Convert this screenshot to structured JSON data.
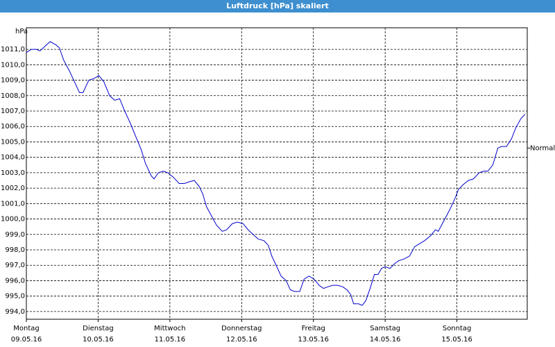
{
  "chart_data": {
    "type": "line",
    "title": "Luftdruck [hPa] skaliert",
    "y_label": "hPa",
    "reference": {
      "label": "Normal",
      "value": 1004.6
    },
    "xlim": [
      0,
      6.98
    ],
    "xticks": [
      {
        "value": 0,
        "label": "Montag",
        "date": "09.05.16"
      },
      {
        "value": 1,
        "label": "Dienstag",
        "date": "10.05.16"
      },
      {
        "value": 2,
        "label": "Mittwoch",
        "date": "11.05.16"
      },
      {
        "value": 3,
        "label": "Donnerstag",
        "date": "12.05.16"
      },
      {
        "value": 4,
        "label": "Freitag",
        "date": "13.05.16"
      },
      {
        "value": 5,
        "label": "Samstag",
        "date": "14.05.16"
      },
      {
        "value": 6,
        "label": "Sonntag",
        "date": "15.05.16"
      }
    ],
    "ylim": [
      993.5,
      1012.4
    ],
    "yticks": [
      {
        "value": 994,
        "label": "994,0"
      },
      {
        "value": 995,
        "label": "995,0"
      },
      {
        "value": 996,
        "label": "996,0"
      },
      {
        "value": 997,
        "label": "997,0"
      },
      {
        "value": 998,
        "label": "998,0"
      },
      {
        "value": 999,
        "label": "999,0"
      },
      {
        "value": 1000,
        "label": "1000,0"
      },
      {
        "value": 1001,
        "label": "1001,0"
      },
      {
        "value": 1002,
        "label": "1002,0"
      },
      {
        "value": 1003,
        "label": "1003,0"
      },
      {
        "value": 1004,
        "label": "1004,0"
      },
      {
        "value": 1005,
        "label": "1005,0"
      },
      {
        "value": 1006,
        "label": "1006,0"
      },
      {
        "value": 1007,
        "label": "1007,0"
      },
      {
        "value": 1008,
        "label": "1008,0"
      },
      {
        "value": 1009,
        "label": "1009,0"
      },
      {
        "value": 1010,
        "label": "1010,0"
      },
      {
        "value": 1011,
        "label": "1011,0"
      }
    ],
    "grid": true,
    "series": [
      {
        "color": "#0000cc",
        "x": [
          0,
          0.07,
          0.14,
          0.19,
          0.26,
          0.33,
          0.41,
          0.46,
          0.52,
          0.6,
          0.68,
          0.74,
          0.79,
          0.87,
          0.94,
          1.01,
          1.08,
          1.16,
          1.23,
          1.3,
          1.37,
          1.45,
          1.52,
          1.6,
          1.66,
          1.74,
          1.78,
          1.84,
          1.91,
          1.97,
          2.05,
          2.13,
          2.2,
          2.26,
          2.34,
          2.41,
          2.46,
          2.51,
          2.58,
          2.65,
          2.73,
          2.79,
          2.87,
          2.94,
          3.02,
          3.09,
          3.16,
          3.23,
          3.31,
          3.37,
          3.42,
          3.48,
          3.55,
          3.62,
          3.68,
          3.74,
          3.81,
          3.87,
          3.94,
          4.01,
          4.08,
          4.14,
          4.2,
          4.27,
          4.34,
          4.41,
          4.47,
          4.52,
          4.56,
          4.63,
          4.68,
          4.73,
          4.79,
          4.85,
          4.9,
          4.95,
          5.0,
          5.07,
          5.13,
          5.19,
          5.26,
          5.34,
          5.41,
          5.48,
          5.55,
          5.63,
          5.7,
          5.74,
          5.82,
          5.9,
          5.97,
          6.02,
          6.08,
          6.16,
          6.23,
          6.31,
          6.37,
          6.43,
          6.5,
          6.57,
          6.62,
          6.69,
          6.76,
          6.82,
          6.89,
          6.95
        ],
        "values": [
          1010.8,
          1011.0,
          1011.0,
          1010.9,
          1011.2,
          1011.5,
          1011.3,
          1011.1,
          1010.3,
          1009.6,
          1008.8,
          1008.2,
          1008.2,
          1009.0,
          1009.1,
          1009.3,
          1008.9,
          1008.0,
          1007.7,
          1007.8,
          1007.0,
          1006.2,
          1005.4,
          1004.5,
          1003.6,
          1002.8,
          1002.6,
          1003.0,
          1003.1,
          1003.0,
          1002.7,
          1002.3,
          1002.3,
          1002.4,
          1002.5,
          1002.1,
          1001.6,
          1000.8,
          1000.2,
          999.6,
          999.2,
          999.3,
          999.7,
          999.8,
          999.7,
          999.3,
          999.0,
          998.7,
          998.6,
          998.3,
          997.6,
          997.0,
          996.3,
          996.0,
          995.4,
          995.3,
          995.3,
          996.1,
          996.3,
          996.1,
          995.7,
          995.5,
          995.6,
          995.7,
          995.7,
          995.6,
          995.4,
          995.1,
          994.5,
          994.5,
          994.4,
          994.7,
          995.5,
          996.4,
          996.4,
          996.8,
          996.9,
          996.8,
          997.1,
          997.3,
          997.4,
          997.6,
          998.2,
          998.4,
          998.6,
          998.9,
          999.3,
          999.2,
          999.9,
          1000.6,
          1001.3,
          1001.9,
          1002.2,
          1002.5,
          1002.6,
          1003.0,
          1003.1,
          1003.1,
          1003.5,
          1004.6,
          1004.7,
          1004.7,
          1005.2,
          1005.9,
          1006.5,
          1006.8
        ]
      }
    ]
  }
}
